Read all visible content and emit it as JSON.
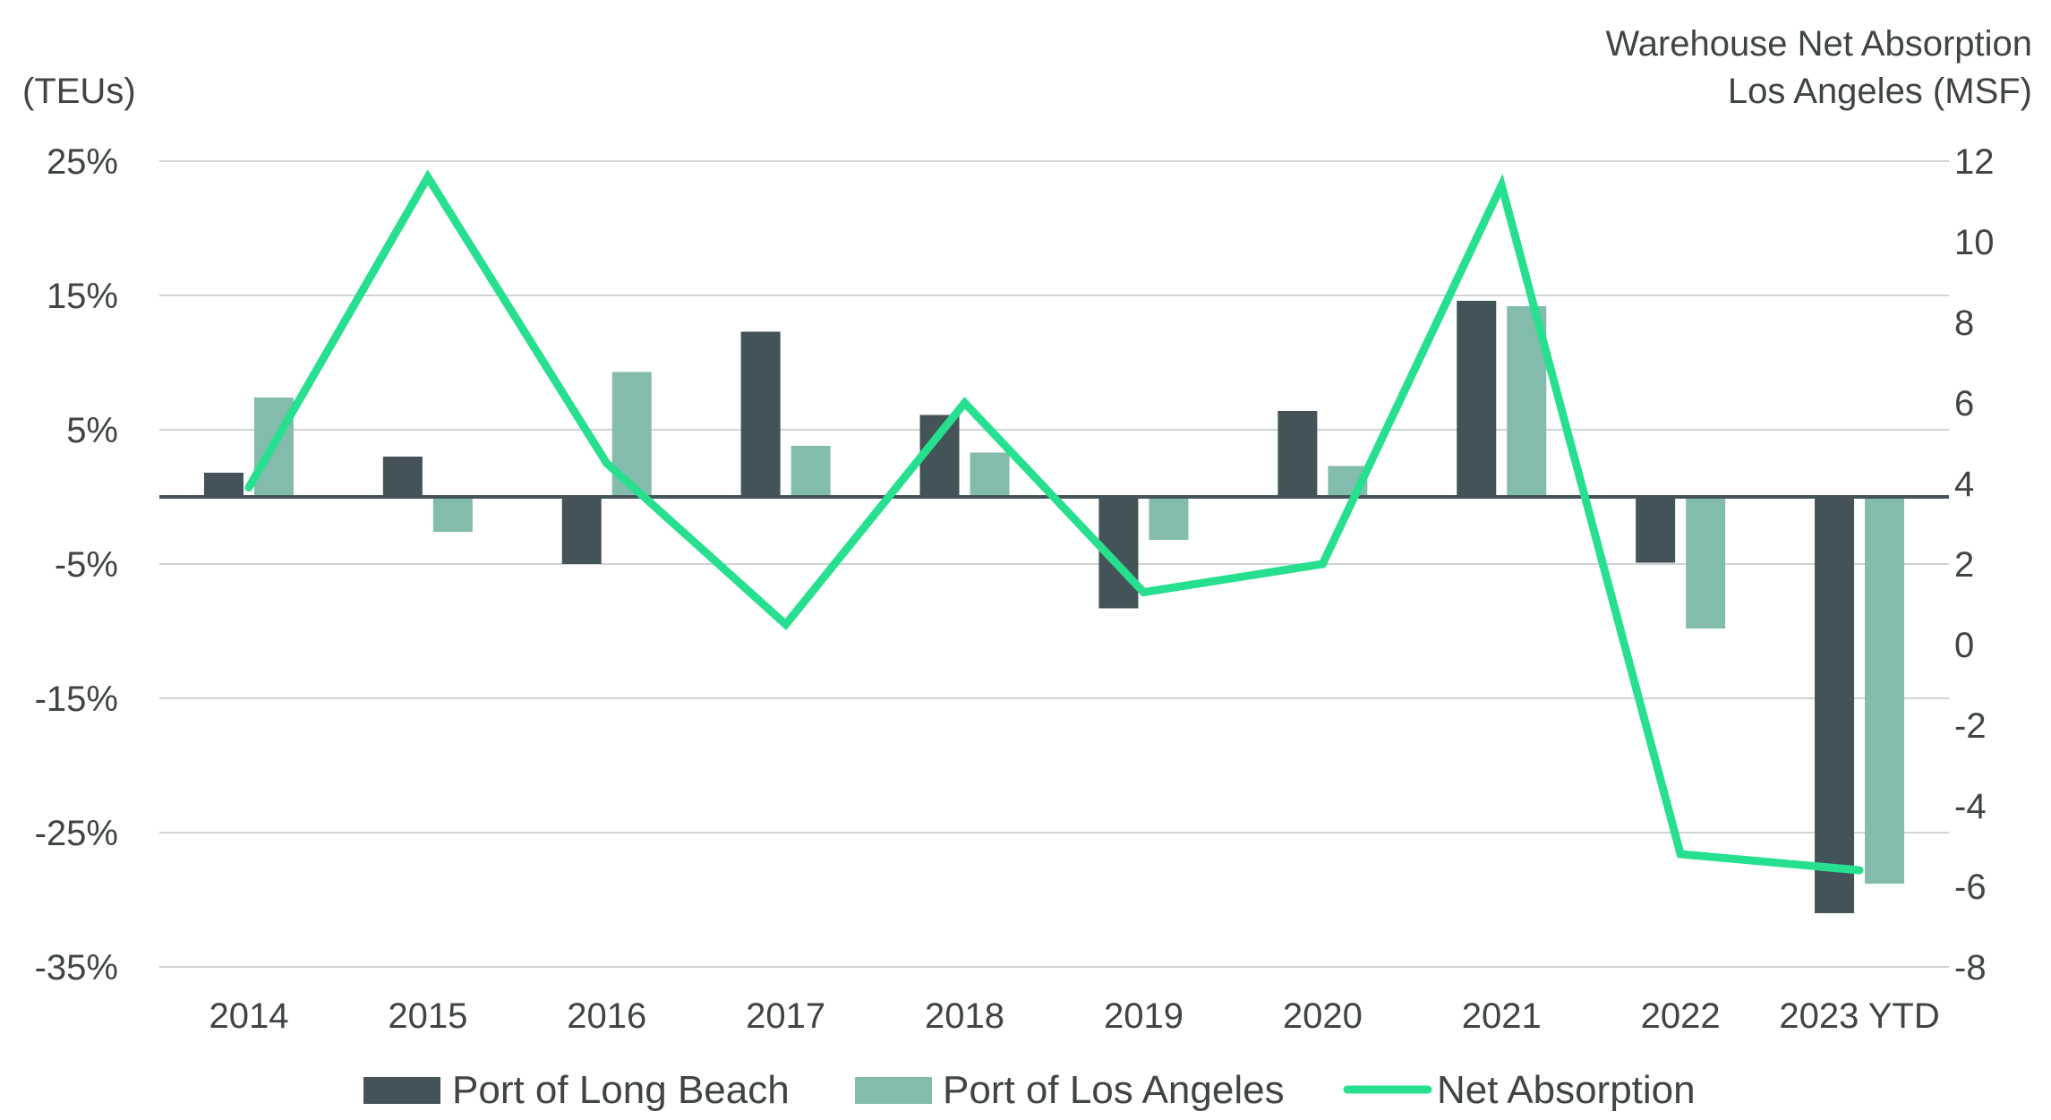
{
  "chart_data": {
    "type": "bar",
    "categories": [
      "2014",
      "2015",
      "2016",
      "2017",
      "2018",
      "2019",
      "2020",
      "2021",
      "2022",
      "2023 YTD"
    ],
    "y_left": {
      "label": "(TEUs)",
      "ticks": [
        "25%",
        "15%",
        "5%",
        "-5%",
        "-15%",
        "-25%",
        "-35%"
      ],
      "tick_values": [
        25,
        15,
        5,
        -5,
        -15,
        -25,
        -35
      ],
      "range": [
        -35,
        25
      ]
    },
    "y_right": {
      "label_line1": "Warehouse Net Absorption",
      "label_line2": "Los Angeles (MSF)",
      "ticks": [
        "12",
        "10",
        "8",
        "6",
        "4",
        "2",
        "0",
        "-2",
        "-4",
        "-6",
        "-8"
      ],
      "tick_values": [
        12,
        10,
        8,
        6,
        4,
        2,
        0,
        -2,
        -4,
        -6,
        -8
      ],
      "range": [
        -8,
        12
      ]
    },
    "series": [
      {
        "name": "Port of Long Beach",
        "type": "bar",
        "axis": "left",
        "color": "#445357",
        "values": [
          1.8,
          3.0,
          -5.0,
          12.3,
          6.1,
          -8.3,
          6.4,
          14.6,
          -4.9,
          -31.0
        ]
      },
      {
        "name": "Port of Los Angeles",
        "type": "bar",
        "axis": "left",
        "color": "#83bcac",
        "values": [
          7.4,
          -2.6,
          9.3,
          3.8,
          3.3,
          -3.2,
          2.3,
          14.2,
          -9.8,
          -28.8
        ]
      },
      {
        "name": "Net Absorption",
        "type": "line",
        "axis": "right",
        "color": "#26e08f",
        "values": [
          3.9,
          11.6,
          4.5,
          0.5,
          6.0,
          1.3,
          2.0,
          11.4,
          -5.2,
          -5.6
        ]
      }
    ],
    "grid": true,
    "legend_position": "bottom"
  }
}
